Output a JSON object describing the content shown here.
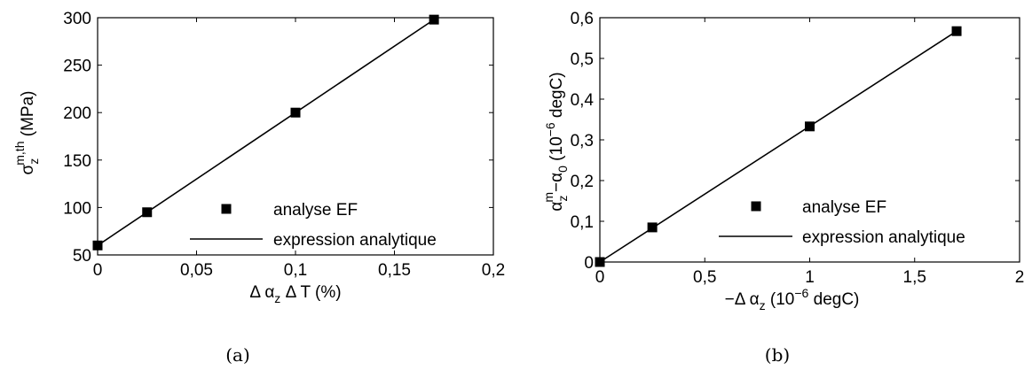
{
  "chart_data": [
    {
      "type": "scatter",
      "xlim": [
        0,
        0.2
      ],
      "ylim": [
        50,
        300
      ],
      "xticks": [
        "0",
        "0,05",
        "0,1",
        "0,15",
        "0,2"
      ],
      "yticks": [
        "50",
        "100",
        "150",
        "200",
        "250",
        "300"
      ],
      "xlabel": {
        "pre": "Δ α",
        "sub": "z",
        "post": " Δ T (%)"
      },
      "ylabel": {
        "base": "σ",
        "sub": "z",
        "sup": "m,th",
        "post": " (MPa)"
      },
      "legend_position": "center-right",
      "series": [
        {
          "name": "analyse EF",
          "style": "markers",
          "x": [
            0,
            0.025,
            0.1,
            0.17
          ],
          "y": [
            60,
            95,
            200,
            298
          ]
        },
        {
          "name": "expression analytique",
          "style": "line",
          "x": [
            0,
            0.17
          ],
          "y": [
            60,
            298
          ]
        }
      ],
      "caption": "(a)"
    },
    {
      "type": "scatter",
      "xlim": [
        0,
        2
      ],
      "ylim": [
        0,
        0.6
      ],
      "xticks": [
        "0",
        "0,5",
        "1",
        "1,5",
        "2"
      ],
      "yticks": [
        "0",
        "0,1",
        "0,2",
        "0,3",
        "0,4",
        "0,5",
        "0,6"
      ],
      "xlabel": {
        "pre": "−Δ α",
        "sub": "z",
        "mid": " (10",
        "sup": "−6",
        "post": " degC)"
      },
      "ylabel": {
        "base": "α",
        "sub1": "z",
        "sup1": "m",
        "mid": "−α",
        "sub2": "0",
        "pre2": " (10",
        "sup2": "−6",
        "post": " degC)"
      },
      "legend_position": "center-right",
      "series": [
        {
          "name": "analyse EF",
          "style": "markers",
          "x": [
            0,
            0.25,
            1,
            1.7
          ],
          "y": [
            0,
            0.085,
            0.333,
            0.567
          ]
        },
        {
          "name": "expression analytique",
          "style": "line",
          "x": [
            0,
            1.7
          ],
          "y": [
            0,
            0.567
          ]
        }
      ],
      "caption": "(b)"
    }
  ]
}
